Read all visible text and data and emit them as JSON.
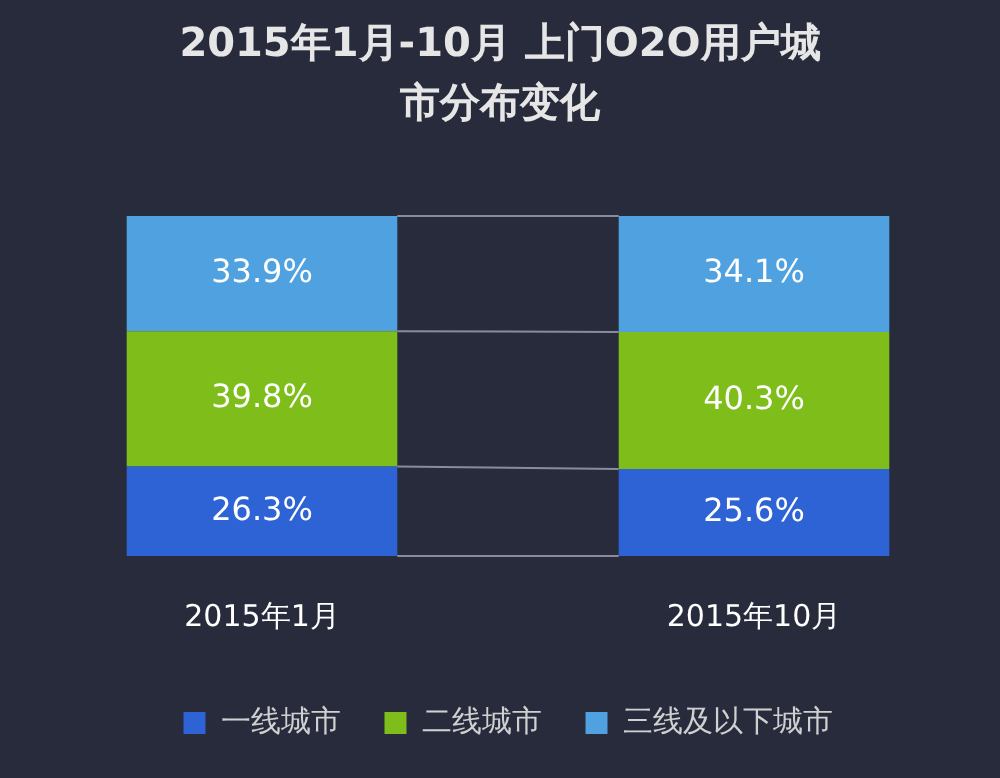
{
  "chart_data": {
    "type": "bar",
    "title": "2015年1月-10月  上门O2O用户城市分布变化",
    "categories": [
      "2015年1月",
      "2015年10月"
    ],
    "stacked": true,
    "legend": "bottom",
    "series": [
      {
        "name": "一线城市",
        "color": "#2e63d6",
        "values": [
          26.3,
          25.6
        ],
        "value_labels": [
          "26.3%",
          "25.6%"
        ]
      },
      {
        "name": "二线城市",
        "color": "#7ebd1a",
        "values": [
          39.8,
          40.3
        ],
        "value_labels": [
          "39.8%",
          "40.3%"
        ]
      },
      {
        "name": "三线及以下城市",
        "color": "#4fa2df",
        "values": [
          33.9,
          34.1
        ],
        "value_labels": [
          "33.9%",
          "34.1%"
        ]
      }
    ]
  }
}
